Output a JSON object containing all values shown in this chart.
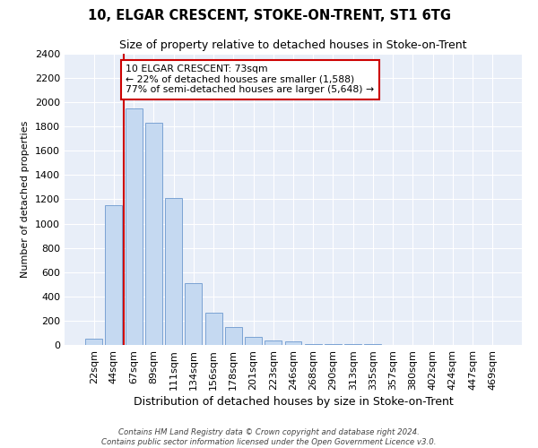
{
  "title1": "10, ELGAR CRESCENT, STOKE-ON-TRENT, ST1 6TG",
  "title2": "Size of property relative to detached houses in Stoke-on-Trent",
  "xlabel": "Distribution of detached houses by size in Stoke-on-Trent",
  "ylabel": "Number of detached properties",
  "categories": [
    "22sqm",
    "44sqm",
    "67sqm",
    "89sqm",
    "111sqm",
    "134sqm",
    "156sqm",
    "178sqm",
    "201sqm",
    "223sqm",
    "246sqm",
    "268sqm",
    "290sqm",
    "313sqm",
    "335sqm",
    "357sqm",
    "380sqm",
    "402sqm",
    "424sqm",
    "447sqm",
    "469sqm"
  ],
  "values": [
    50,
    1150,
    1950,
    1830,
    1210,
    510,
    265,
    150,
    65,
    40,
    30,
    5,
    10,
    5,
    5,
    3,
    2,
    2,
    1,
    1,
    1
  ],
  "bar_color": "#c5d9f1",
  "bar_edge_color": "#7ba3d4",
  "vline_color": "#cc0000",
  "vline_x": 1.5,
  "annotation_text": "10 ELGAR CRESCENT: 73sqm\n← 22% of detached houses are smaller (1,588)\n77% of semi-detached houses are larger (5,648) →",
  "annotation_box_color": "#ffffff",
  "annotation_box_edge": "#cc0000",
  "ylim": [
    0,
    2400
  ],
  "yticks": [
    0,
    200,
    400,
    600,
    800,
    1000,
    1200,
    1400,
    1600,
    1800,
    2000,
    2200,
    2400
  ],
  "bg_color": "#e8eef8",
  "grid_color": "#ffffff",
  "footer1": "Contains HM Land Registry data © Crown copyright and database right 2024.",
  "footer2": "Contains public sector information licensed under the Open Government Licence v3.0."
}
